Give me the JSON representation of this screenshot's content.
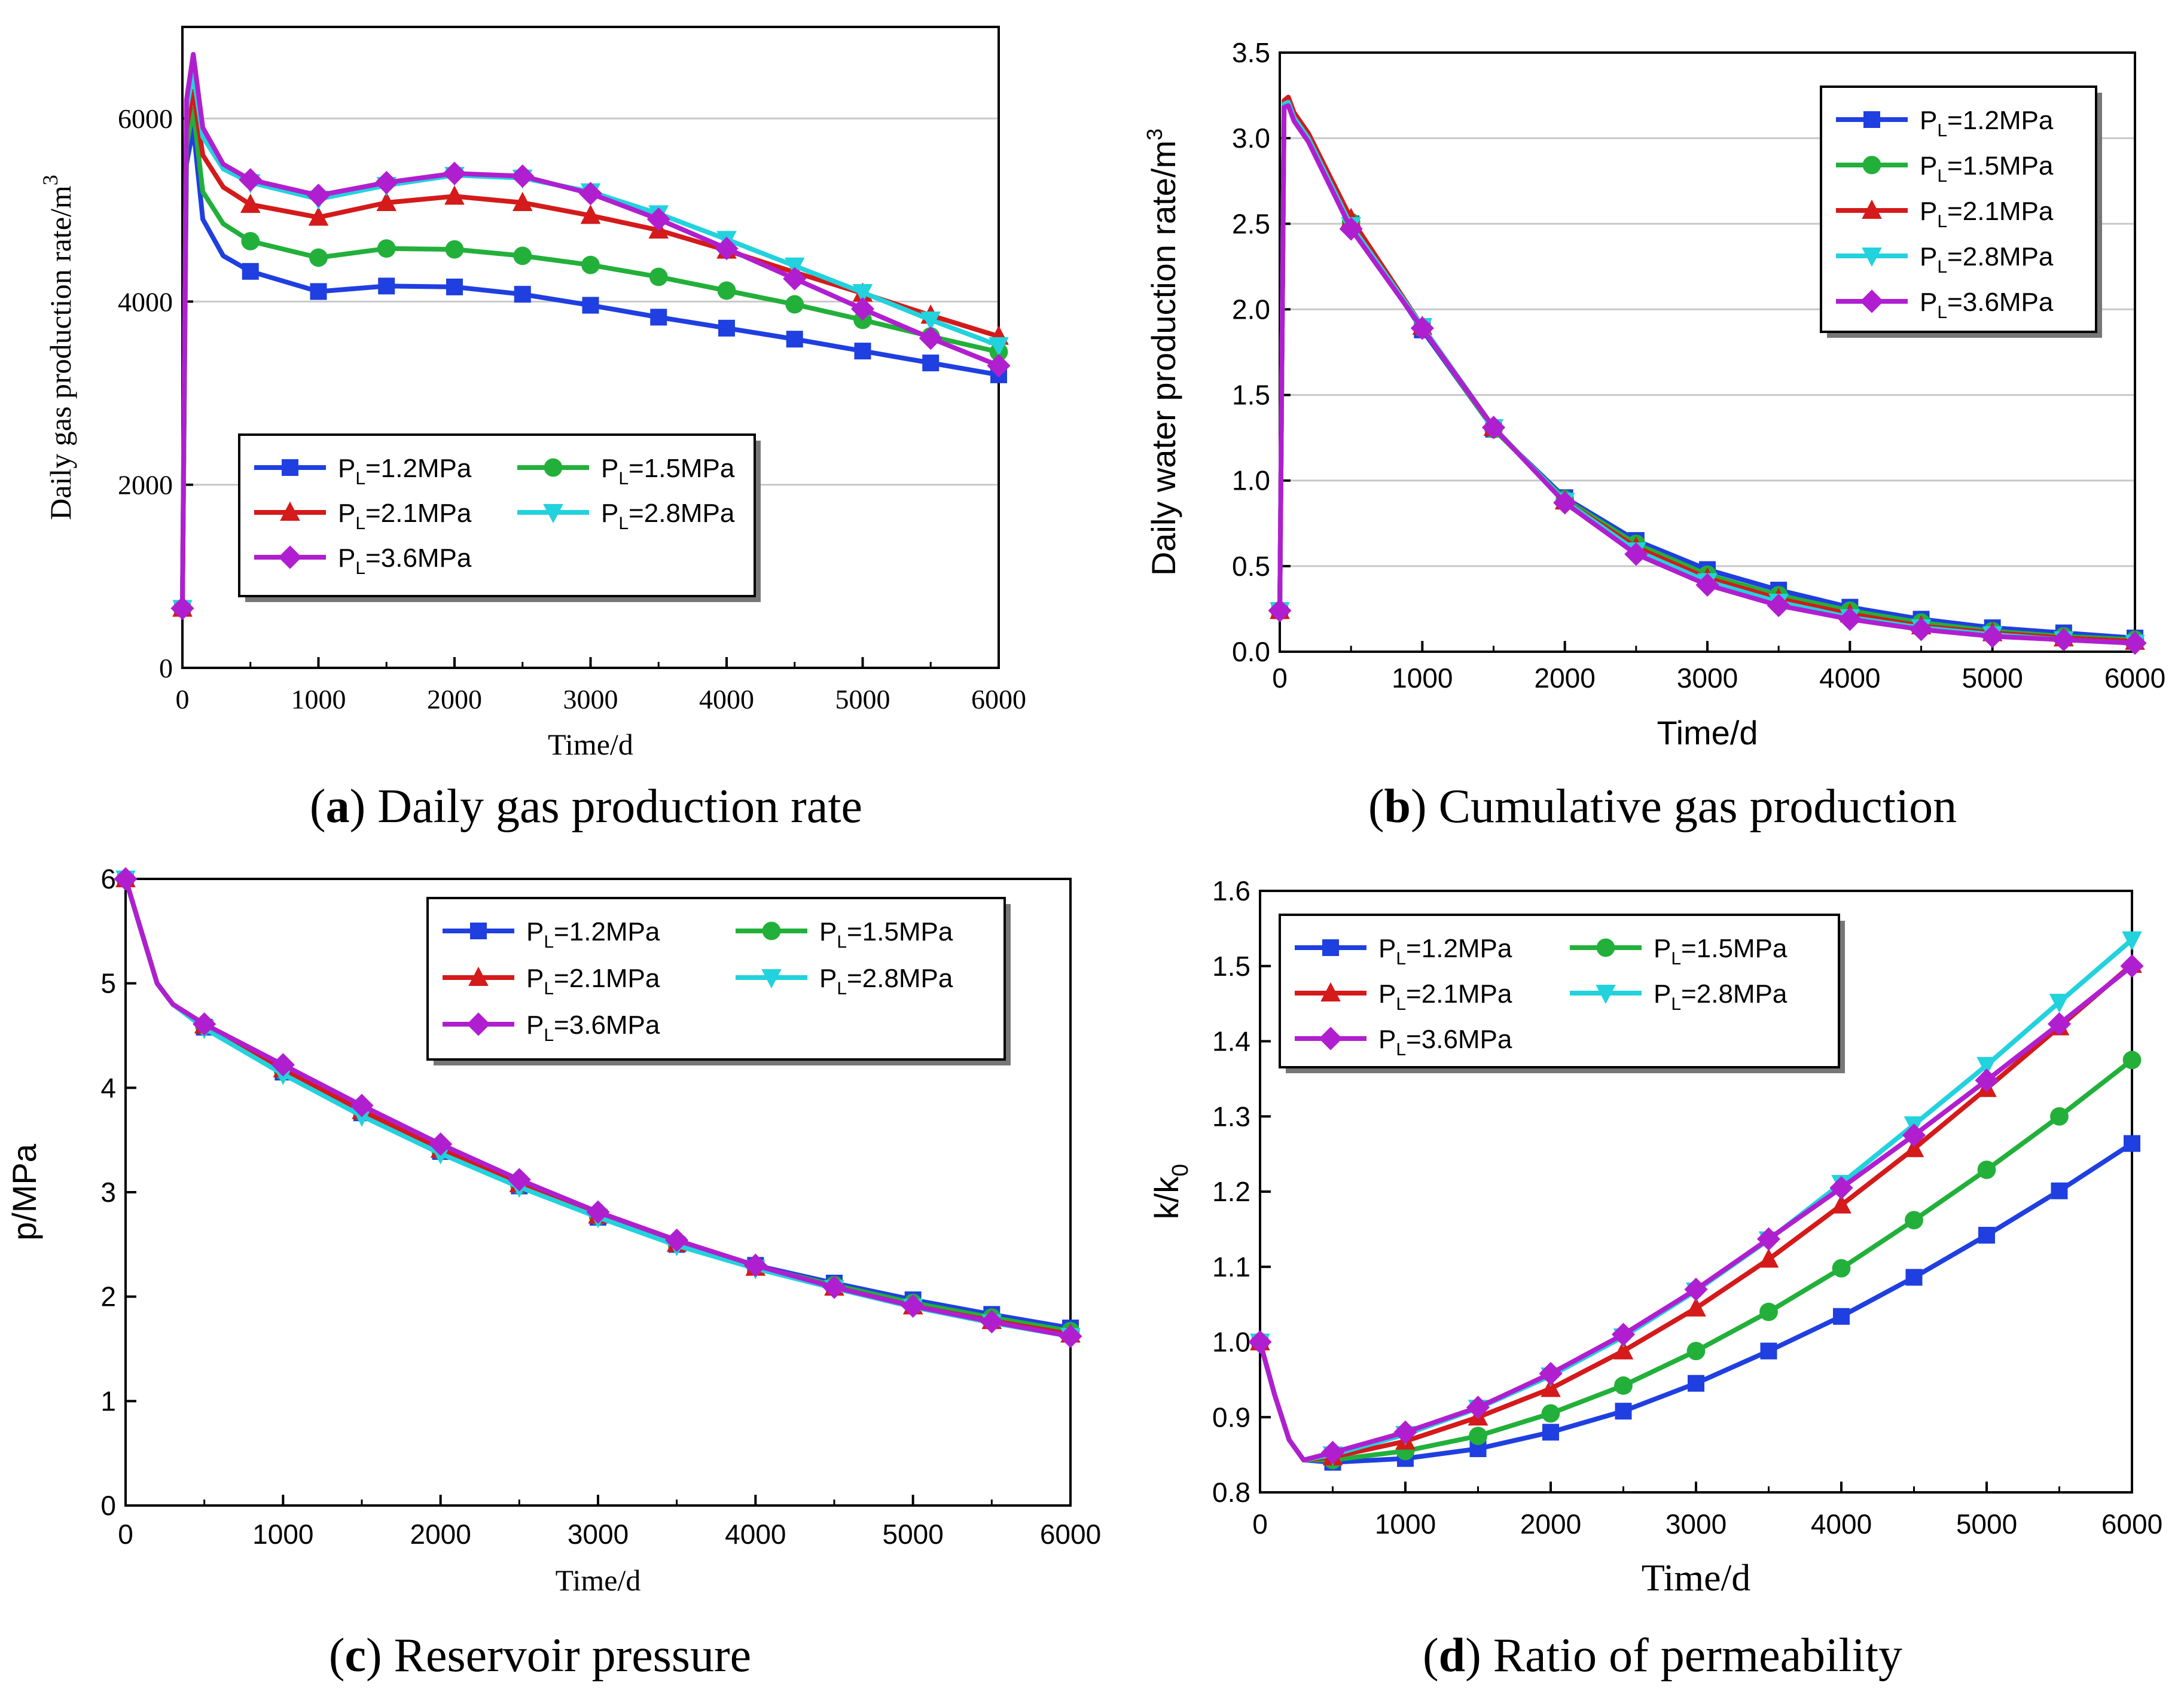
{
  "chart_data": [
    {
      "id": "a",
      "type": "line",
      "caption_letter": "a",
      "caption_text": "Daily gas production rate",
      "xlabel": "Time/d",
      "ylabel": "Daily gas production rate/m",
      "ylabel_sup": "3",
      "xlim": [
        0,
        6000
      ],
      "ylim": [
        0,
        7000
      ],
      "xticks": [
        0,
        1000,
        2000,
        3000,
        4000,
        5000,
        6000
      ],
      "yticks": [
        0,
        2000,
        4000,
        6000
      ],
      "legend_columns": 2,
      "x": [
        0,
        30,
        80,
        150,
        300,
        500,
        1000,
        1500,
        2000,
        2500,
        3000,
        3500,
        4000,
        4500,
        5000,
        5500,
        6000
      ],
      "markers_x": [
        0,
        500,
        1000,
        1500,
        2000,
        2500,
        3000,
        3500,
        4000,
        4500,
        5000,
        5500,
        6000
      ],
      "series": [
        {
          "name": "PL=1.2MPa",
          "name_main": "P",
          "name_sub": "L",
          "name_rest": "=1.2MPa",
          "color": "#1f3fe0",
          "marker": "square",
          "values": [
            650,
            5500,
            5900,
            4900,
            4500,
            4330,
            4110,
            4170,
            4160,
            4080,
            3960,
            3830,
            3710,
            3590,
            3460,
            3330,
            3200
          ]
        },
        {
          "name": "PL=1.5MPa",
          "name_main": "P",
          "name_sub": "L",
          "name_rest": "=1.5MPa",
          "color": "#22b03a",
          "marker": "circle",
          "values": [
            650,
            5700,
            6100,
            5200,
            4850,
            4660,
            4480,
            4580,
            4570,
            4500,
            4400,
            4270,
            4120,
            3970,
            3800,
            3620,
            3450
          ]
        },
        {
          "name": "PL=2.1MPa",
          "name_main": "P",
          "name_sub": "L",
          "name_rest": "=2.1MPa",
          "color": "#d41a1a",
          "marker": "triangle",
          "values": [
            650,
            5900,
            6300,
            5600,
            5250,
            5060,
            4920,
            5080,
            5150,
            5080,
            4940,
            4780,
            4560,
            4320,
            4090,
            3850,
            3620
          ]
        },
        {
          "name": "PL=2.8MPa",
          "name_main": "P",
          "name_sub": "L",
          "name_rest": "=2.8MPa",
          "color": "#22d2dd",
          "marker": "triangle-down",
          "values": [
            650,
            6100,
            6500,
            5800,
            5450,
            5300,
            5120,
            5270,
            5380,
            5350,
            5200,
            4960,
            4680,
            4390,
            4100,
            3800,
            3520
          ]
        },
        {
          "name": "PL=3.6MPa",
          "name_main": "P",
          "name_sub": "L",
          "name_rest": "=3.6MPa",
          "color": "#b01fcf",
          "marker": "diamond",
          "values": [
            650,
            6200,
            6700,
            5900,
            5500,
            5330,
            5160,
            5300,
            5400,
            5370,
            5180,
            4900,
            4580,
            4250,
            3920,
            3600,
            3300
          ]
        }
      ]
    },
    {
      "id": "b",
      "type": "line",
      "caption_letter": "b",
      "caption_text": "Cumulative gas production",
      "xlabel": "Time/d",
      "ylabel": "Daily water production rate/m",
      "ylabel_sup": "3",
      "xlim": [
        0,
        6000
      ],
      "ylim": [
        0,
        3.5
      ],
      "xticks": [
        0,
        1000,
        2000,
        3000,
        4000,
        5000,
        6000
      ],
      "yticks": [
        0.0,
        0.5,
        1.0,
        1.5,
        2.0,
        2.5,
        3.0,
        3.5
      ],
      "yticklabels": [
        "0.0",
        "0.5",
        "1.0",
        "1.5",
        "2.0",
        "2.5",
        "3.0",
        "3.5"
      ],
      "legend_columns": 1,
      "x": [
        0,
        30,
        60,
        100,
        200,
        500,
        1000,
        1500,
        2000,
        2500,
        3000,
        3500,
        4000,
        4500,
        5000,
        5500,
        6000
      ],
      "markers_x": [
        0,
        500,
        1000,
        1500,
        2000,
        2500,
        3000,
        3500,
        4000,
        4500,
        5000,
        5500,
        6000
      ],
      "series": [
        {
          "name": "PL=1.2MPa",
          "name_main": "P",
          "name_sub": "L",
          "name_rest": "=1.2MPa",
          "color": "#1f3fe0",
          "marker": "square",
          "values": [
            0.24,
            3.2,
            3.22,
            3.12,
            3.0,
            2.5,
            1.88,
            1.3,
            0.9,
            0.65,
            0.48,
            0.36,
            0.26,
            0.19,
            0.14,
            0.11,
            0.08
          ]
        },
        {
          "name": "PL=1.5MPa",
          "name_main": "P",
          "name_sub": "L",
          "name_rest": "=1.5MPa",
          "color": "#22b03a",
          "marker": "circle",
          "values": [
            0.24,
            3.21,
            3.23,
            3.13,
            3.01,
            2.51,
            1.89,
            1.3,
            0.89,
            0.63,
            0.45,
            0.33,
            0.24,
            0.17,
            0.12,
            0.09,
            0.07
          ]
        },
        {
          "name": "PL=2.1MPa",
          "name_main": "P",
          "name_sub": "L",
          "name_rest": "=2.1MPa",
          "color": "#d41a1a",
          "marker": "triangle",
          "values": [
            0.24,
            3.22,
            3.24,
            3.15,
            3.03,
            2.53,
            1.9,
            1.31,
            0.88,
            0.61,
            0.43,
            0.31,
            0.22,
            0.15,
            0.11,
            0.08,
            0.06
          ]
        },
        {
          "name": "PL=2.8MPa",
          "name_main": "P",
          "name_sub": "L",
          "name_rest": "=2.8MPa",
          "color": "#22d2dd",
          "marker": "triangle-down",
          "values": [
            0.24,
            3.2,
            3.21,
            3.12,
            3.0,
            2.49,
            1.9,
            1.31,
            0.88,
            0.59,
            0.41,
            0.29,
            0.2,
            0.14,
            0.1,
            0.07,
            0.05
          ]
        },
        {
          "name": "PL=3.6MPa",
          "name_main": "P",
          "name_sub": "L",
          "name_rest": "=3.6MPa",
          "color": "#b01fcf",
          "marker": "diamond",
          "values": [
            0.24,
            3.18,
            3.19,
            3.1,
            2.98,
            2.47,
            1.89,
            1.31,
            0.87,
            0.57,
            0.39,
            0.27,
            0.19,
            0.13,
            0.09,
            0.07,
            0.05
          ]
        }
      ]
    },
    {
      "id": "c",
      "type": "line",
      "caption_letter": "c",
      "caption_text": "Reservoir pressure",
      "xlabel": "Time/d",
      "ylabel": "p/MPa",
      "xlim": [
        0,
        6000
      ],
      "ylim": [
        0,
        6
      ],
      "xticks": [
        0,
        1000,
        2000,
        3000,
        4000,
        5000,
        6000
      ],
      "yticks": [
        0,
        1,
        2,
        3,
        4,
        5,
        6
      ],
      "legend_columns": 2,
      "x": [
        0,
        100,
        200,
        300,
        500,
        1000,
        1500,
        2000,
        2500,
        3000,
        3500,
        4000,
        4500,
        5000,
        5500,
        6000
      ],
      "markers_x": [
        0,
        500,
        1000,
        1500,
        2000,
        2500,
        3000,
        3500,
        4000,
        4500,
        5000,
        5500,
        6000
      ],
      "series": [
        {
          "name": "PL=1.2MPa",
          "name_main": "P",
          "name_sub": "L",
          "name_rest": "=1.2MPa",
          "color": "#1f3fe0",
          "marker": "square",
          "values": [
            6.0,
            5.5,
            5.0,
            4.8,
            4.58,
            4.15,
            3.76,
            3.39,
            3.06,
            2.76,
            2.5,
            2.3,
            2.13,
            1.97,
            1.83,
            1.7
          ]
        },
        {
          "name": "PL=1.5MPa",
          "name_main": "P",
          "name_sub": "L",
          "name_rest": "=1.5MPa",
          "color": "#22b03a",
          "marker": "circle",
          "values": [
            6.0,
            5.5,
            5.0,
            4.8,
            4.59,
            4.16,
            3.77,
            3.4,
            3.07,
            2.77,
            2.51,
            2.29,
            2.11,
            1.94,
            1.8,
            1.67
          ]
        },
        {
          "name": "PL=2.1MPa",
          "name_main": "P",
          "name_sub": "L",
          "name_rest": "=2.1MPa",
          "color": "#d41a1a",
          "marker": "triangle",
          "values": [
            6.0,
            5.5,
            5.0,
            4.8,
            4.6,
            4.18,
            3.78,
            3.41,
            3.08,
            2.78,
            2.51,
            2.28,
            2.09,
            1.91,
            1.77,
            1.64
          ]
        },
        {
          "name": "PL=2.8MPa",
          "name_main": "P",
          "name_sub": "L",
          "name_rest": "=2.8MPa",
          "color": "#22d2dd",
          "marker": "triangle-down",
          "values": [
            6.0,
            5.5,
            5.0,
            4.8,
            4.57,
            4.13,
            3.73,
            3.37,
            3.05,
            2.76,
            2.49,
            2.27,
            2.08,
            1.9,
            1.75,
            1.62
          ]
        },
        {
          "name": "PL=3.6MPa",
          "name_main": "P",
          "name_sub": "L",
          "name_rest": "=3.6MPa",
          "color": "#b01fcf",
          "marker": "diamond",
          "values": [
            6.0,
            5.5,
            5.0,
            4.8,
            4.61,
            4.22,
            3.83,
            3.46,
            3.12,
            2.81,
            2.54,
            2.3,
            2.09,
            1.91,
            1.76,
            1.62
          ]
        }
      ]
    },
    {
      "id": "d",
      "type": "line",
      "caption_letter": "d",
      "caption_text": "Ratio of permeability",
      "xlabel": "Time/d",
      "ylabel": "k/k",
      "ylabel_sub": "0",
      "xlim": [
        0,
        6000
      ],
      "ylim": [
        0.8,
        1.6
      ],
      "xticks": [
        0,
        1000,
        2000,
        3000,
        4000,
        5000,
        6000
      ],
      "yticks": [
        0.8,
        0.9,
        1.0,
        1.1,
        1.2,
        1.3,
        1.4,
        1.5,
        1.6
      ],
      "yticklabels": [
        "0.8",
        "0.9",
        "1.0",
        "1.1",
        "1.2",
        "1.3",
        "1.4",
        "1.5",
        "1.6"
      ],
      "legend_columns": 2,
      "x": [
        0,
        100,
        200,
        300,
        500,
        1000,
        1500,
        2000,
        2500,
        3000,
        3500,
        4000,
        4500,
        5000,
        5500,
        6000
      ],
      "markers_x": [
        0,
        500,
        1000,
        1500,
        2000,
        2500,
        3000,
        3500,
        4000,
        4500,
        5000,
        5500,
        6000
      ],
      "series": [
        {
          "name": "PL=1.2MPa",
          "name_main": "P",
          "name_sub": "L",
          "name_rest": "=1.2MPa",
          "color": "#1f3fe0",
          "marker": "square",
          "values": [
            1.0,
            0.93,
            0.87,
            0.843,
            0.84,
            0.845,
            0.858,
            0.88,
            0.908,
            0.945,
            0.988,
            1.034,
            1.086,
            1.142,
            1.201,
            1.264
          ]
        },
        {
          "name": "PL=1.5MPa",
          "name_main": "P",
          "name_sub": "L",
          "name_rest": "=1.5MPa",
          "color": "#22b03a",
          "marker": "circle",
          "values": [
            1.0,
            0.93,
            0.87,
            0.843,
            0.843,
            0.855,
            0.875,
            0.905,
            0.942,
            0.988,
            1.04,
            1.098,
            1.162,
            1.229,
            1.3,
            1.375
          ]
        },
        {
          "name": "PL=2.1MPa",
          "name_main": "P",
          "name_sub": "L",
          "name_rest": "=2.1MPa",
          "color": "#d41a1a",
          "marker": "triangle",
          "values": [
            1.0,
            0.93,
            0.87,
            0.843,
            0.847,
            0.868,
            0.9,
            0.938,
            0.988,
            1.045,
            1.11,
            1.182,
            1.257,
            1.337,
            1.419,
            1.502
          ]
        },
        {
          "name": "PL=2.8MPa",
          "name_main": "P",
          "name_sub": "L",
          "name_rest": "=2.8MPa",
          "color": "#22d2dd",
          "marker": "triangle-down",
          "values": [
            1.0,
            0.93,
            0.87,
            0.843,
            0.85,
            0.877,
            0.912,
            0.955,
            1.007,
            1.068,
            1.136,
            1.211,
            1.289,
            1.368,
            1.452,
            1.535
          ]
        },
        {
          "name": "PL=3.6MPa",
          "name_main": "P",
          "name_sub": "L",
          "name_rest": "=3.6MPa",
          "color": "#b01fcf",
          "marker": "diamond",
          "values": [
            1.0,
            0.93,
            0.87,
            0.843,
            0.853,
            0.88,
            0.913,
            0.958,
            1.01,
            1.07,
            1.137,
            1.205,
            1.275,
            1.348,
            1.423,
            1.5
          ]
        }
      ]
    }
  ]
}
